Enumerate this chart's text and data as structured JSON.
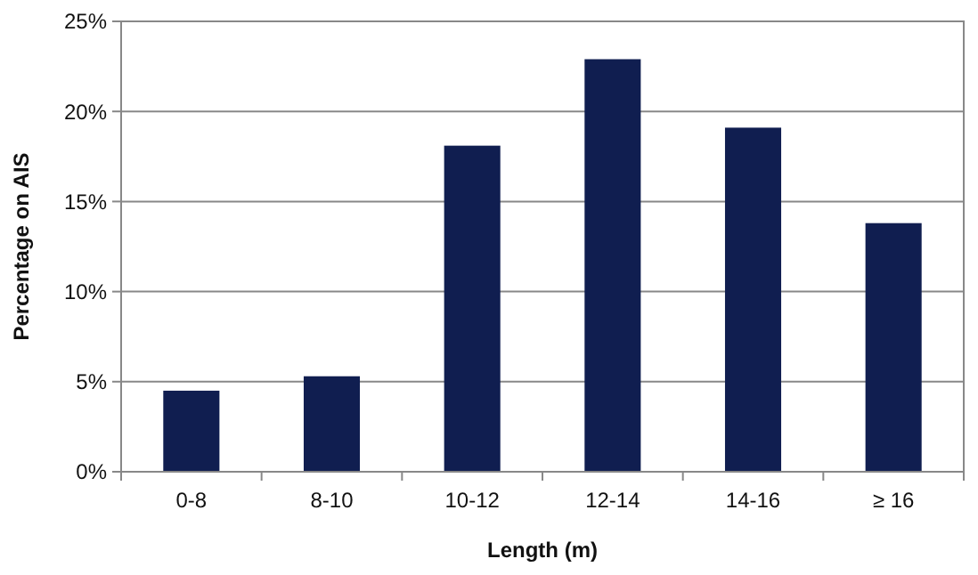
{
  "chart_data": {
    "type": "bar",
    "xlabel": "Length (m)",
    "ylabel": "Percentage on AIS",
    "categories": [
      "0-8",
      "8-10",
      "10-12",
      "12-14",
      "14-16",
      "≥ 16"
    ],
    "values": [
      4.5,
      5.3,
      18.1,
      22.9,
      19.1,
      13.8
    ],
    "color": "#101e50",
    "ylim": [
      0,
      25
    ],
    "yticks": [
      {
        "value": 0,
        "label": "0%"
      },
      {
        "value": 5,
        "label": "5%"
      },
      {
        "value": 10,
        "label": "10%"
      },
      {
        "value": 15,
        "label": "15%"
      },
      {
        "value": 20,
        "label": "20%"
      },
      {
        "value": 25,
        "label": "25%"
      }
    ],
    "grid": "y"
  }
}
